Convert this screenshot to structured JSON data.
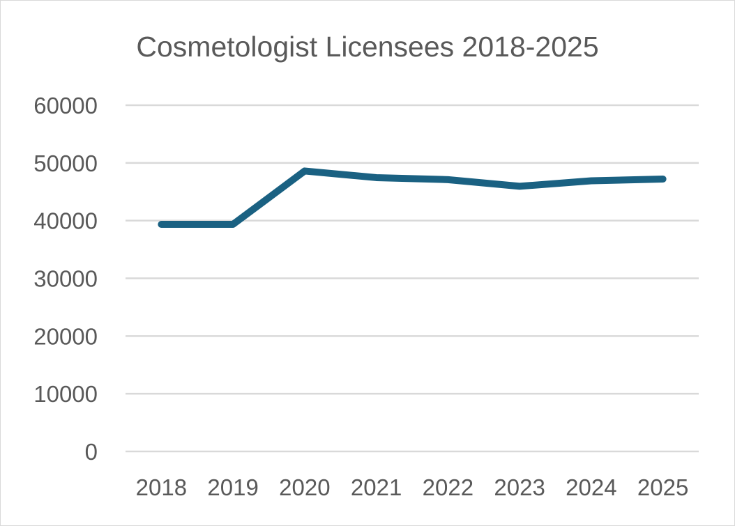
{
  "chart_data": {
    "type": "line",
    "title": "Cosmetologist Licensees 2018-2025",
    "categories": [
      "2018",
      "2019",
      "2020",
      "2021",
      "2022",
      "2023",
      "2024",
      "2025"
    ],
    "series": [
      {
        "values": [
          39350,
          39350,
          48600,
          47450,
          47100,
          45950,
          46900,
          47200
        ],
        "color": "#1a6182"
      }
    ],
    "ylim": [
      0,
      60000
    ],
    "yticks": [
      "0",
      "10000",
      "20000",
      "30000",
      "40000",
      "50000",
      "60000"
    ],
    "grid": true,
    "legend": "none",
    "xlabel": "",
    "ylabel": ""
  }
}
